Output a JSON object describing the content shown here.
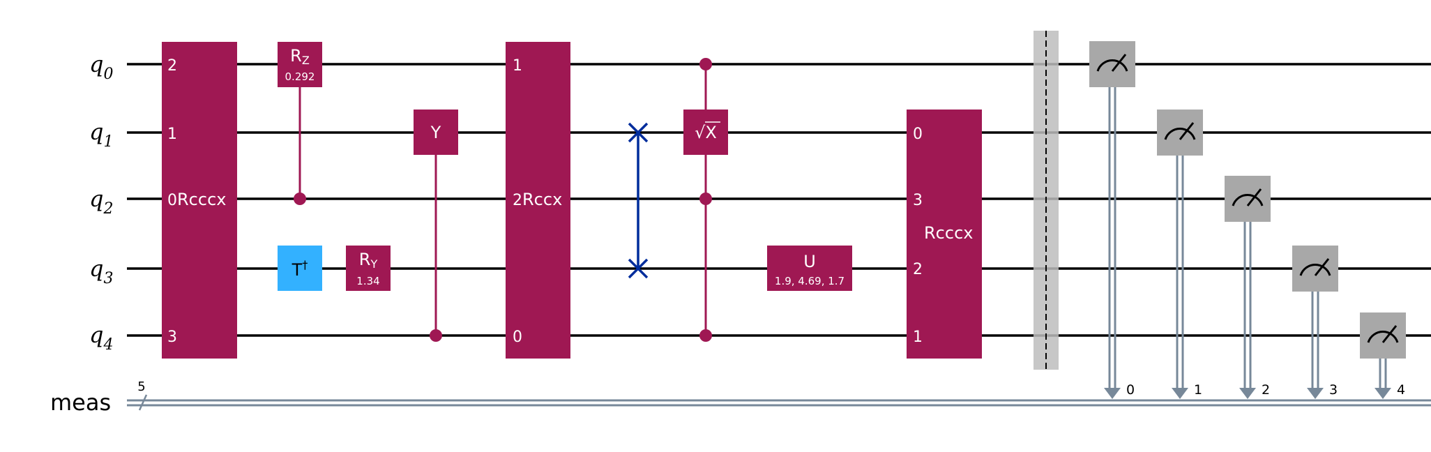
{
  "colors": {
    "wire": "#000000",
    "multi_gate": "#9f1853",
    "tdg_gate": "#33b1ff",
    "swap": "#002d9c",
    "measure": "#a8a8a8",
    "classical": "#778899",
    "barrier": "#bdbdbd",
    "gate_text": "#ffffff"
  },
  "qubits": [
    {
      "base": "q",
      "index": "0"
    },
    {
      "base": "q",
      "index": "1"
    },
    {
      "base": "q",
      "index": "2"
    },
    {
      "base": "q",
      "index": "3"
    },
    {
      "base": "q",
      "index": "4"
    }
  ],
  "classical_register": {
    "name": "meas",
    "size": "5",
    "bits": [
      "0",
      "1",
      "2",
      "3",
      "4"
    ]
  },
  "gates": {
    "rcccx1": {
      "name": "Rcccx",
      "pins": [
        "2",
        "1",
        "0",
        "",
        "3"
      ]
    },
    "rz": {
      "name": "R",
      "sub": "Z",
      "param": "0.292"
    },
    "tdg": {
      "name": "T",
      "sup": "†"
    },
    "ry": {
      "name": "R",
      "sub": "Y",
      "param": "1.34"
    },
    "y": {
      "name": "Y"
    },
    "rccx": {
      "name": "Rccx",
      "pins": [
        "1",
        "",
        "2",
        "",
        "0"
      ]
    },
    "sx": {
      "name": "√X"
    },
    "u": {
      "name": "U",
      "param": "1.9, 4.69, 1.7"
    },
    "rcccx2": {
      "name": "Rcccx",
      "pins": [
        "",
        "0",
        "3",
        "2",
        "1"
      ]
    }
  }
}
